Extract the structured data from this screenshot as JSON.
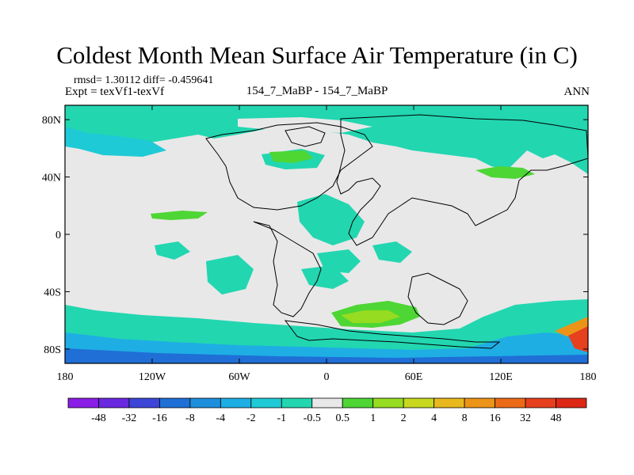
{
  "header": {
    "title": "Coldest Month Mean Surface Air Temperature (in C)",
    "stats": "rmsd= 1.30112 diff= -0.459641",
    "expt": "Expt = texVf1-texVf",
    "case": "154_7_MaBP - 154_7_MaBP",
    "season": "ANN"
  },
  "chart_data": {
    "type": "heatmap",
    "title": "Coldest Month Mean Surface Air Temperature (in C)",
    "x_ticks": [
      "180",
      "120W",
      "60W",
      "0",
      "60E",
      "120E",
      "180"
    ],
    "x_values": [
      -180,
      -120,
      -60,
      0,
      60,
      120,
      180
    ],
    "y_ticks": [
      "80N",
      "40N",
      "0",
      "40S",
      "80S"
    ],
    "y_values": [
      80,
      40,
      0,
      -40,
      -80
    ],
    "xlim": [
      -180,
      180
    ],
    "ylim": [
      -90,
      90
    ],
    "colorbar": {
      "labels": [
        "-48",
        "-32",
        "-16",
        "-8",
        "-4",
        "-2",
        "-1",
        "-0.5",
        "0.5",
        "1",
        "2",
        "4",
        "8",
        "16",
        "32",
        "48"
      ],
      "colors": [
        "#8a1ee6",
        "#6a28e0",
        "#3c46d8",
        "#1f6fd6",
        "#1e8fdc",
        "#1eaee4",
        "#1ecad6",
        "#22d6b0",
        "#e8e8e8",
        "#4ed634",
        "#96dc20",
        "#c8d81e",
        "#e8b81e",
        "#ec9418",
        "#ec6a16",
        "#e6401e",
        "#dc2814"
      ]
    },
    "regions": [
      {
        "name": "arctic-band",
        "color": "#22d6b0"
      },
      {
        "name": "north-pacific-low",
        "color": "#1ecad6"
      },
      {
        "name": "southern-ocean-band",
        "color": "#22d6b0"
      },
      {
        "name": "antarctic-coast",
        "color": "#1eaee4"
      },
      {
        "name": "south-atlantic-warm",
        "color": "#4ed634"
      },
      {
        "name": "south-africa-warm",
        "color": "#96dc20"
      }
    ]
  },
  "colors": {
    "neutral": "#e8e8e8",
    "outline": "#000000"
  }
}
